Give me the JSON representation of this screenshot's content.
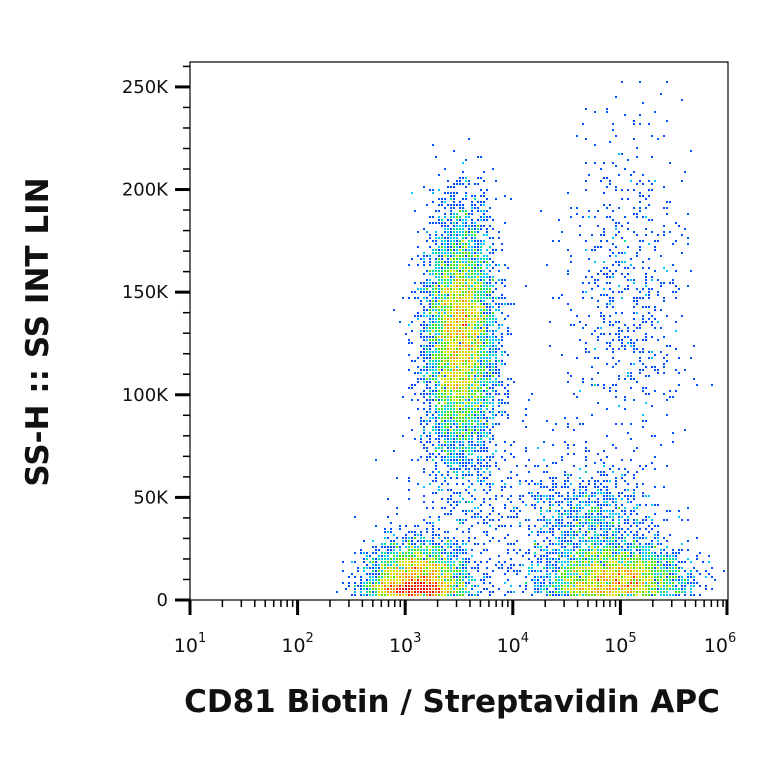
{
  "chart_data": {
    "type": "scatter",
    "subtype": "flow-cytometry-density-dot-plot",
    "title": "",
    "xlabel": "CD81 Biotin / Streptavidin APC",
    "ylabel": "SS-H :: SS INT LIN",
    "x_scale": "log",
    "y_scale": "linear",
    "xlim": [
      10,
      1000000
    ],
    "ylim": [
      0,
      262144
    ],
    "x_ticks": [
      {
        "base": "10",
        "exp": "1",
        "value": 10
      },
      {
        "base": "10",
        "exp": "2",
        "value": 100
      },
      {
        "base": "10",
        "exp": "3",
        "value": 1000
      },
      {
        "base": "10",
        "exp": "4",
        "value": 10000
      },
      {
        "base": "10",
        "exp": "5",
        "value": 100000
      },
      {
        "base": "10",
        "exp": "6",
        "value": 1000000
      }
    ],
    "y_ticks": [
      {
        "label": "0",
        "value": 0
      },
      {
        "label": "50K",
        "value": 50000
      },
      {
        "label": "100K",
        "value": 100000
      },
      {
        "label": "150K",
        "value": 150000
      },
      {
        "label": "200K",
        "value": 200000
      },
      {
        "label": "250K",
        "value": 250000
      }
    ],
    "populations": [
      {
        "center_x": 1300,
        "center_y": 9000,
        "spread_log_x": 0.22,
        "spread_y": 9000,
        "weight": 0.24,
        "peak_density": "high"
      },
      {
        "center_x": 3300,
        "center_y": 128000,
        "spread_log_x": 0.16,
        "spread_y": 30000,
        "weight": 0.42,
        "peak_density": "high"
      },
      {
        "center_x": 90000,
        "center_y": 11000,
        "spread_log_x": 0.32,
        "spread_y": 8000,
        "weight": 0.22,
        "peak_density": "high"
      },
      {
        "center_x": 55000,
        "center_y": 40000,
        "spread_log_x": 0.28,
        "spread_y": 12000,
        "weight": 0.05,
        "peak_density": "low"
      },
      {
        "center_x": 120000,
        "center_y": 150000,
        "spread_log_x": 0.28,
        "spread_y": 45000,
        "weight": 0.04,
        "peak_density": "low"
      },
      {
        "center_x": 7000,
        "center_y": 45000,
        "spread_log_x": 0.5,
        "spread_y": 25000,
        "weight": 0.03,
        "peak_density": "low"
      }
    ],
    "density_colors": [
      "#0000cc",
      "#0050ff",
      "#00c8ff",
      "#00e0a0",
      "#50e000",
      "#e0e000",
      "#ff9000",
      "#ff2000",
      "#d00000"
    ],
    "grid": false,
    "legend": "none"
  }
}
